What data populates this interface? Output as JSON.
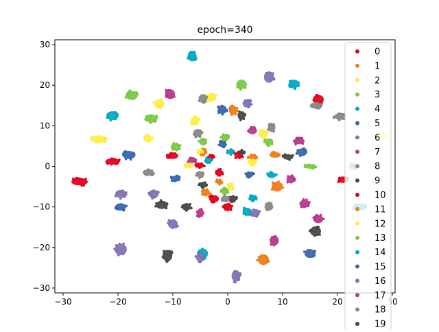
{
  "chart_data": {
    "type": "scatter",
    "title": "epoch=340",
    "xlabel": "",
    "ylabel": "",
    "xlim": [
      -31.5,
      30.5
    ],
    "ylim": [
      -31.2,
      31.2
    ],
    "x_ticks": [
      -30,
      -20,
      -10,
      0,
      10,
      20,
      30
    ],
    "y_ticks": [
      -30,
      -20,
      -10,
      0,
      10,
      20,
      30
    ],
    "grid": false,
    "legend_position": "upper-right (overflowing bottom)",
    "legend": [
      {
        "label": "0",
        "color": "#e4001b"
      },
      {
        "label": "1",
        "color": "#f07d1a"
      },
      {
        "label": "2",
        "color": "#ffee44"
      },
      {
        "label": "3",
        "color": "#7ac943"
      },
      {
        "label": "4",
        "color": "#00a9c4"
      },
      {
        "label": "5",
        "color": "#3a66b0"
      },
      {
        "label": "6",
        "color": "#8272b4"
      },
      {
        "label": "7",
        "color": "#b6398c"
      },
      {
        "label": "8",
        "color": "#888888"
      },
      {
        "label": "9",
        "color": "#484848"
      },
      {
        "label": "10",
        "color": "#e4001b"
      },
      {
        "label": "11",
        "color": "#f07d1a"
      },
      {
        "label": "12",
        "color": "#ffee44"
      },
      {
        "label": "13",
        "color": "#7ac943"
      },
      {
        "label": "14",
        "color": "#00a9c4"
      },
      {
        "label": "15",
        "color": "#3a66b0"
      },
      {
        "label": "16",
        "color": "#8272b4"
      },
      {
        "label": "17",
        "color": "#b6398c"
      },
      {
        "label": "18",
        "color": "#888888"
      },
      {
        "label": "19",
        "color": "#484848"
      }
    ],
    "clusters": [
      {
        "x": -27,
        "y": -3.8,
        "color": "#e4001b",
        "rx": 1.5,
        "ry": 0.9
      },
      {
        "x": -21,
        "y": 1.2,
        "color": "#e4001b",
        "rx": 1.3,
        "ry": 0.8
      },
      {
        "x": -10,
        "y": 2.6,
        "color": "#e4001b",
        "rx": 1.0,
        "ry": 0.8
      },
      {
        "x": -5,
        "y": 0.2,
        "color": "#e4001b",
        "rx": 0.8,
        "ry": 0.6
      },
      {
        "x": -3,
        "y": 2.3,
        "color": "#e4001b",
        "rx": 0.5,
        "ry": 0.5
      },
      {
        "x": -1.5,
        "y": -1.5,
        "color": "#e4001b",
        "rx": 0.6,
        "ry": 0.7
      },
      {
        "x": -2.5,
        "y": -8,
        "color": "#e4001b",
        "rx": 0.9,
        "ry": 0.9
      },
      {
        "x": 0,
        "y": -10,
        "color": "#e4001b",
        "rx": 0.8,
        "ry": 0.9
      },
      {
        "x": 2,
        "y": 2.8,
        "color": "#e4001b",
        "rx": 0.8,
        "ry": 0.8
      },
      {
        "x": 16.5,
        "y": 16.5,
        "color": "#e4001b",
        "rx": 1.0,
        "ry": 1.1
      },
      {
        "x": 21,
        "y": -3.3,
        "color": "#e4001b",
        "rx": 0.9,
        "ry": 0.8
      },
      {
        "x": 1,
        "y": 13.8,
        "color": "#f07d1a",
        "rx": 0.8,
        "ry": 1.0
      },
      {
        "x": -4.5,
        "y": 3.5,
        "color": "#f07d1a",
        "rx": 0.8,
        "ry": 0.7
      },
      {
        "x": -1.5,
        "y": -3.8,
        "color": "#f07d1a",
        "rx": 0.6,
        "ry": 0.6
      },
      {
        "x": -4,
        "y": -6.5,
        "color": "#f07d1a",
        "rx": 0.8,
        "ry": 0.8
      },
      {
        "x": 4.5,
        "y": 2.2,
        "color": "#f07d1a",
        "rx": 0.8,
        "ry": 0.7
      },
      {
        "x": 8.5,
        "y": 2.8,
        "color": "#f07d1a",
        "rx": 0.9,
        "ry": 0.7
      },
      {
        "x": 9,
        "y": -5,
        "color": "#f07d1a",
        "rx": 1.0,
        "ry": 1.2
      },
      {
        "x": 6.5,
        "y": -23,
        "color": "#f07d1a",
        "rx": 1.0,
        "ry": 1.3
      },
      {
        "x": -12.5,
        "y": 15.5,
        "color": "#ffee44",
        "rx": 0.9,
        "ry": 1.1
      },
      {
        "x": -3,
        "y": 17,
        "color": "#ffee44",
        "rx": 0.9,
        "ry": 1.1
      },
      {
        "x": -6,
        "y": 11.2,
        "color": "#ffee44",
        "rx": 0.8,
        "ry": 1.0
      },
      {
        "x": -23.5,
        "y": 6.7,
        "color": "#ffee44",
        "rx": 1.6,
        "ry": 0.9
      },
      {
        "x": -14.5,
        "y": 6.8,
        "color": "#ffee44",
        "rx": 0.9,
        "ry": 0.8
      },
      {
        "x": -7,
        "y": 0.2,
        "color": "#ffee44",
        "rx": 0.8,
        "ry": 0.7
      },
      {
        "x": -5,
        "y": 3.7,
        "color": "#ffee44",
        "rx": 0.5,
        "ry": 0.5
      },
      {
        "x": 0.5,
        "y": -5,
        "color": "#ffee44",
        "rx": 0.6,
        "ry": 0.8
      },
      {
        "x": 4.5,
        "y": 1.0,
        "color": "#ffee44",
        "rx": 0.8,
        "ry": 0.7
      },
      {
        "x": 6.5,
        "y": 8,
        "color": "#ffee44",
        "rx": 0.8,
        "ry": 1.0
      },
      {
        "x": 28,
        "y": 7.5,
        "color": "#ffee44",
        "rx": 1.0,
        "ry": 0.7
      },
      {
        "x": -17.5,
        "y": 17.5,
        "color": "#7ac943",
        "rx": 1.1,
        "ry": 1.1
      },
      {
        "x": -14,
        "y": 11.8,
        "color": "#7ac943",
        "rx": 1.1,
        "ry": 1.0
      },
      {
        "x": -9.5,
        "y": 4.8,
        "color": "#7ac943",
        "rx": 0.9,
        "ry": 0.9
      },
      {
        "x": -4.5,
        "y": 6,
        "color": "#7ac943",
        "rx": 0.7,
        "ry": 0.8
      },
      {
        "x": -0.5,
        "y": 7,
        "color": "#7ac943",
        "rx": 0.7,
        "ry": 0.9
      },
      {
        "x": 2.5,
        "y": 20.2,
        "color": "#7ac943",
        "rx": 0.9,
        "ry": 1.2
      },
      {
        "x": 7.5,
        "y": 6,
        "color": "#7ac943",
        "rx": 0.8,
        "ry": 0.9
      },
      {
        "x": 15,
        "y": 0,
        "color": "#7ac943",
        "rx": 1.0,
        "ry": 0.6
      },
      {
        "x": -0.5,
        "y": -6.2,
        "color": "#7ac943",
        "rx": 0.7,
        "ry": 0.8
      },
      {
        "x": -6.5,
        "y": 27.2,
        "color": "#00a9c4",
        "rx": 0.8,
        "ry": 1.3
      },
      {
        "x": -21,
        "y": 12.5,
        "color": "#00a9c4",
        "rx": 1.1,
        "ry": 1.1
      },
      {
        "x": -3.5,
        "y": 1.5,
        "color": "#00a9c4",
        "rx": 0.7,
        "ry": 0.6
      },
      {
        "x": 0.5,
        "y": 3.5,
        "color": "#00a9c4",
        "rx": 0.6,
        "ry": 0.6
      },
      {
        "x": 3.5,
        "y": -11.2,
        "color": "#00a9c4",
        "rx": 0.8,
        "ry": 1.0
      },
      {
        "x": 4.5,
        "y": -7.8,
        "color": "#00a9c4",
        "rx": 0.7,
        "ry": 0.7
      },
      {
        "x": 8,
        "y": -2.2,
        "color": "#00a9c4",
        "rx": 0.8,
        "ry": 0.7
      },
      {
        "x": 12,
        "y": 20.3,
        "color": "#00a9c4",
        "rx": 0.9,
        "ry": 1.1
      },
      {
        "x": -4.5,
        "y": -21.5,
        "color": "#00a9c4",
        "rx": 0.9,
        "ry": 1.2
      },
      {
        "x": 24,
        "y": -10,
        "color": "#00a9c4",
        "rx": 1.2,
        "ry": 0.8
      },
      {
        "x": -18,
        "y": 2.8,
        "color": "#3a66b0",
        "rx": 1.2,
        "ry": 1.0
      },
      {
        "x": -9.5,
        "y": -3,
        "color": "#3a66b0",
        "rx": 0.9,
        "ry": 0.7
      },
      {
        "x": -1,
        "y": 5.5,
        "color": "#3a66b0",
        "rx": 0.6,
        "ry": 0.8
      },
      {
        "x": -1,
        "y": 14,
        "color": "#3a66b0",
        "rx": 0.8,
        "ry": 1.1
      },
      {
        "x": 4,
        "y": -2,
        "color": "#3a66b0",
        "rx": 0.7,
        "ry": 0.7
      },
      {
        "x": 13.5,
        "y": 3.5,
        "color": "#3a66b0",
        "rx": 1.0,
        "ry": 0.9
      },
      {
        "x": -19.5,
        "y": -10,
        "color": "#3a66b0",
        "rx": 1.0,
        "ry": 0.9
      },
      {
        "x": 15,
        "y": -21.5,
        "color": "#3a66b0",
        "rx": 1.0,
        "ry": 1.1
      },
      {
        "x": -19.5,
        "y": -6.8,
        "color": "#8272b4",
        "rx": 1.0,
        "ry": 1.0
      },
      {
        "x": -13.5,
        "y": -6.8,
        "color": "#8272b4",
        "rx": 0.9,
        "ry": 1.0
      },
      {
        "x": -10,
        "y": -14.2,
        "color": "#8272b4",
        "rx": 0.9,
        "ry": 1.1
      },
      {
        "x": -19.5,
        "y": -20.5,
        "color": "#8272b4",
        "rx": 1.1,
        "ry": 1.4
      },
      {
        "x": 3.5,
        "y": 15.5,
        "color": "#8272b4",
        "rx": 0.8,
        "ry": 1.0
      },
      {
        "x": 7.5,
        "y": 22,
        "color": "#8272b4",
        "rx": 0.9,
        "ry": 1.4
      },
      {
        "x": 5,
        "y": -11.5,
        "color": "#8272b4",
        "rx": 0.8,
        "ry": 1.0
      },
      {
        "x": -5,
        "y": -22.5,
        "color": "#8272b4",
        "rx": 0.8,
        "ry": 1.0
      },
      {
        "x": 1.5,
        "y": -27,
        "color": "#8272b4",
        "rx": 0.8,
        "ry": 1.4
      },
      {
        "x": -10.5,
        "y": 17.8,
        "color": "#b6398c",
        "rx": 0.9,
        "ry": 1.2
      },
      {
        "x": -6.5,
        "y": 1.5,
        "color": "#b6398c",
        "rx": 0.8,
        "ry": 0.7
      },
      {
        "x": 4.5,
        "y": 8.8,
        "color": "#b6398c",
        "rx": 0.8,
        "ry": 0.9
      },
      {
        "x": 13,
        "y": 6.2,
        "color": "#b6398c",
        "rx": 1.0,
        "ry": 0.8
      },
      {
        "x": 11.5,
        "y": -3.2,
        "color": "#b6398c",
        "rx": 0.8,
        "ry": 0.9
      },
      {
        "x": 14,
        "y": -9.2,
        "color": "#b6398c",
        "rx": 0.9,
        "ry": 1.0
      },
      {
        "x": 16.5,
        "y": -13,
        "color": "#b6398c",
        "rx": 0.9,
        "ry": 1.0
      },
      {
        "x": -5,
        "y": -11.5,
        "color": "#b6398c",
        "rx": 0.7,
        "ry": 0.9
      },
      {
        "x": 8.5,
        "y": -18.3,
        "color": "#b6398c",
        "rx": 0.8,
        "ry": 1.2
      },
      {
        "x": -4.5,
        "y": 16.8,
        "color": "#888888",
        "rx": 0.8,
        "ry": 1.0
      },
      {
        "x": -5.5,
        "y": 8.2,
        "color": "#888888",
        "rx": 0.8,
        "ry": 1.0
      },
      {
        "x": -14.5,
        "y": -1.5,
        "color": "#888888",
        "rx": 1.0,
        "ry": 0.8
      },
      {
        "x": -5,
        "y": -2,
        "color": "#888888",
        "rx": 0.7,
        "ry": 0.8
      },
      {
        "x": 8,
        "y": 9.5,
        "color": "#888888",
        "rx": 0.7,
        "ry": 0.9
      },
      {
        "x": 7.5,
        "y": -10,
        "color": "#888888",
        "rx": 0.8,
        "ry": 0.9
      },
      {
        "x": 16,
        "y": 15,
        "color": "#888888",
        "rx": 1.0,
        "ry": 0.8
      },
      {
        "x": 20.5,
        "y": 12.3,
        "color": "#888888",
        "rx": 1.1,
        "ry": 0.8
      },
      {
        "x": -0.5,
        "y": -8,
        "color": "#888888",
        "rx": 0.7,
        "ry": 0.8
      },
      {
        "x": 23,
        "y": 0,
        "color": "#888888",
        "rx": 0.8,
        "ry": 0.6
      },
      {
        "x": 2.5,
        "y": 12.5,
        "color": "#484848",
        "rx": 0.7,
        "ry": 1.0
      },
      {
        "x": -12,
        "y": -9.5,
        "color": "#484848",
        "rx": 1.1,
        "ry": 1.0
      },
      {
        "x": -7.5,
        "y": -10,
        "color": "#484848",
        "rx": 0.8,
        "ry": 0.9
      },
      {
        "x": -4.5,
        "y": -4.5,
        "color": "#484848",
        "rx": 0.7,
        "ry": 0.7
      },
      {
        "x": 1,
        "y": -8,
        "color": "#484848",
        "rx": 0.6,
        "ry": 0.8
      },
      {
        "x": 11,
        "y": 2.3,
        "color": "#484848",
        "rx": 0.9,
        "ry": 0.7
      },
      {
        "x": 16,
        "y": -16,
        "color": "#484848",
        "rx": 1.0,
        "ry": 1.2
      },
      {
        "x": -11,
        "y": -22,
        "color": "#484848",
        "rx": 0.9,
        "ry": 1.4
      },
      {
        "x": 2.5,
        "y": 3.5,
        "color": "#484848",
        "rx": 0.5,
        "ry": 0.5
      }
    ]
  }
}
